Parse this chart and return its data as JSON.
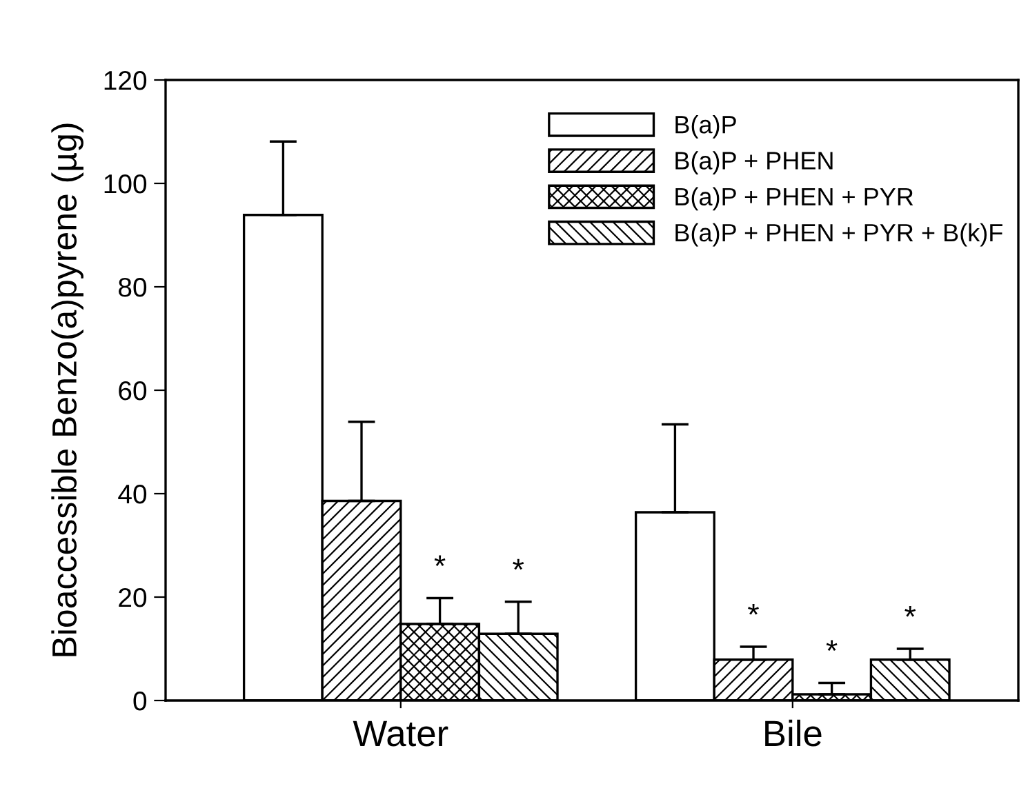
{
  "chart_data": {
    "type": "bar",
    "ylabel": "Bioaccessible Benzo(a)pyrene (µg)",
    "categories": [
      "Water",
      "Bile"
    ],
    "series": [
      {
        "name": "B(a)P",
        "color": "#ffffff",
        "values": [
          93.9,
          36.4
        ],
        "errors": [
          [
            93.9,
            108.1
          ],
          [
            36.4,
            53.4
          ]
        ],
        "value_labels": [
          null,
          null
        ]
      },
      {
        "name": "B(a)P + PHEN",
        "color": "#000000",
        "values": [
          38.6,
          7.9
        ],
        "errors": [
          [
            38.6,
            53.9
          ],
          [
            7.9,
            10.4
          ]
        ],
        "value_labels": [
          null,
          "*"
        ]
      },
      {
        "name": "B(a)P + PHEN + PYR",
        "color": "#000000",
        "values": [
          14.8,
          1.2
        ],
        "errors": [
          [
            14.8,
            19.8
          ],
          [
            1.2,
            3.4
          ]
        ],
        "value_labels": [
          "*",
          "*"
        ]
      },
      {
        "name": "B(a)P + PHEN + PYR + B(k)F",
        "color": "#000000",
        "values": [
          12.9,
          7.9
        ],
        "errors": [
          [
            12.9,
            19.1
          ],
          [
            7.9,
            10.0
          ]
        ],
        "value_labels": [
          "*",
          "*"
        ]
      }
    ],
    "ylim": [
      0,
      120
    ],
    "yticks": [
      0,
      20,
      40,
      60,
      80,
      100,
      120
    ],
    "grid": false,
    "legend": "top right"
  }
}
